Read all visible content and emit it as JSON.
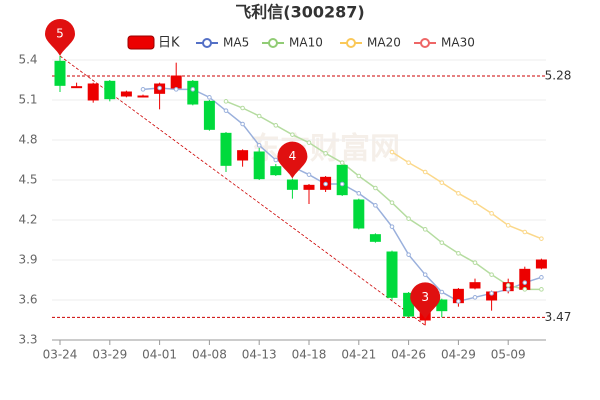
{
  "chart_data": {
    "type": "candlestick",
    "title": "飞利信(300287)",
    "watermark": "东方财富网",
    "categories": [
      "03-24",
      null,
      null,
      "03-29",
      null,
      null,
      "04-01",
      null,
      null,
      "04-08",
      null,
      null,
      "04-13",
      null,
      null,
      "04-18",
      null,
      null,
      "04-21",
      null,
      null,
      "04-26",
      null,
      null,
      "04-29",
      null,
      null,
      "05-09",
      null,
      null
    ],
    "candles": {
      "name": "日K",
      "up_color": "#ec0000",
      "down_color": "#00da3c",
      "open": [
        5.39,
        5.2,
        5.1,
        5.24,
        5.13,
        5.13,
        5.15,
        5.19,
        5.24,
        5.09,
        4.85,
        4.65,
        4.71,
        4.6,
        4.5,
        4.43,
        4.43,
        4.61,
        4.35,
        4.09,
        3.96,
        3.65,
        3.45,
        3.6,
        3.58,
        3.69,
        3.6,
        3.67,
        3.68,
        3.84
      ],
      "close": [
        5.21,
        5.2,
        5.22,
        5.11,
        5.16,
        5.13,
        5.22,
        5.28,
        5.07,
        4.88,
        4.61,
        4.72,
        4.51,
        4.54,
        4.43,
        4.46,
        4.52,
        4.39,
        4.14,
        4.04,
        3.62,
        3.48,
        3.54,
        3.52,
        3.68,
        3.73,
        3.66,
        3.73,
        3.83,
        3.9
      ],
      "high": [
        5.43,
        5.23,
        5.23,
        5.25,
        5.17,
        5.14,
        5.23,
        5.38,
        5.25,
        5.1,
        4.86,
        4.73,
        4.74,
        4.62,
        4.51,
        4.47,
        4.53,
        4.63,
        4.36,
        4.1,
        3.97,
        3.66,
        3.56,
        3.61,
        3.69,
        3.76,
        3.67,
        3.76,
        3.85,
        3.91
      ],
      "low": [
        5.16,
        5.19,
        5.08,
        5.09,
        5.12,
        5.12,
        5.03,
        5.17,
        5.06,
        4.87,
        4.56,
        4.6,
        4.5,
        4.53,
        4.36,
        4.32,
        4.41,
        4.38,
        4.13,
        4.03,
        3.6,
        3.47,
        3.41,
        3.47,
        3.55,
        3.68,
        3.52,
        3.65,
        3.67,
        3.83
      ]
    },
    "series": [
      {
        "name": "MA5",
        "color": "#5470c6",
        "line_color": "#9ab0dc",
        "values": [
          null,
          null,
          null,
          null,
          null,
          5.18,
          5.19,
          5.18,
          5.18,
          5.12,
          5.02,
          4.92,
          4.76,
          4.65,
          4.6,
          4.54,
          4.47,
          4.47,
          4.4,
          4.31,
          4.15,
          3.94,
          3.79,
          3.66,
          3.59,
          3.62,
          3.65,
          3.68,
          3.73,
          3.77
        ]
      },
      {
        "name": "MA10",
        "color": "#91cc75",
        "line_color": "#b5dca0",
        "values": [
          null,
          null,
          null,
          null,
          null,
          null,
          null,
          null,
          null,
          null,
          5.09,
          5.04,
          4.98,
          4.91,
          4.84,
          4.78,
          4.7,
          4.63,
          4.53,
          4.44,
          4.33,
          4.21,
          4.13,
          4.03,
          3.95,
          3.88,
          3.79,
          3.71,
          3.68,
          3.68
        ]
      },
      {
        "name": "MA20",
        "color": "#fac858",
        "line_color": "#fbd88a",
        "values": [
          null,
          null,
          null,
          null,
          null,
          null,
          null,
          null,
          null,
          null,
          null,
          null,
          null,
          null,
          null,
          null,
          null,
          null,
          null,
          null,
          4.71,
          4.63,
          4.56,
          4.48,
          4.4,
          4.33,
          4.25,
          4.16,
          4.11,
          4.06
        ]
      },
      {
        "name": "MA30",
        "color": "#ee6666",
        "line_color": "#f29a9a",
        "values": [
          null,
          null,
          null,
          null,
          null,
          null,
          null,
          null,
          null,
          null,
          null,
          null,
          null,
          null,
          null,
          null,
          null,
          null,
          null,
          null,
          null,
          null,
          null,
          null,
          null,
          null,
          null,
          null,
          null,
          null
        ]
      }
    ],
    "ylim": [
      3.3,
      5.4
    ],
    "yticks": [
      3.3,
      3.6,
      3.9,
      4.2,
      4.5,
      4.8,
      5.1,
      5.4
    ],
    "hlines": [
      5.28,
      3.47
    ],
    "annotations": [
      {
        "label": "5"
      },
      {
        "label": "4"
      },
      {
        "label": "3"
      }
    ],
    "grid": true
  }
}
